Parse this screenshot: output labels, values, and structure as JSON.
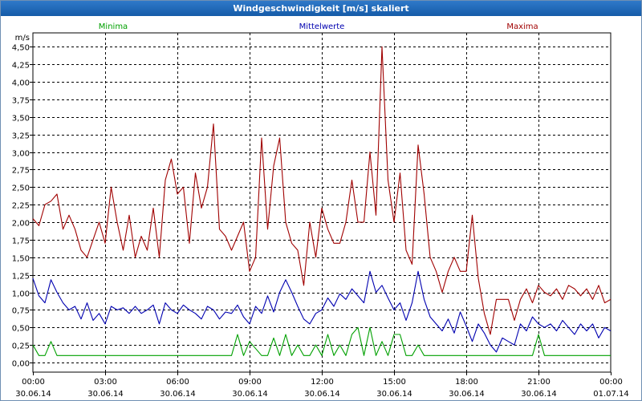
{
  "window": {
    "title": "Windgeschwindigkeit [m/s] skaliert"
  },
  "chart_data": {
    "type": "line",
    "title": "Windgeschwindigkeit [m/s] skaliert",
    "ylabel": "m/s",
    "xlabel": "",
    "ylim": [
      0,
      4.6
    ],
    "xlim_hours": [
      0,
      24
    ],
    "grid": true,
    "legend_placement": "top",
    "yticks": [
      0,
      0.25,
      0.5,
      0.75,
      1.0,
      1.25,
      1.5,
      1.75,
      2.0,
      2.25,
      2.5,
      2.75,
      3.0,
      3.25,
      3.5,
      3.75,
      4.0,
      4.25,
      4.5
    ],
    "ytick_labels": [
      "0,00",
      "0,25",
      "0,50",
      "0,75",
      "1,00",
      "1,25",
      "1,50",
      "1,75",
      "2,00",
      "2,25",
      "2,50",
      "2,75",
      "3,00",
      "3,25",
      "3,50",
      "3,75",
      "4,00",
      "4,25",
      "4,50"
    ],
    "xticks": [
      {
        "hour": 0,
        "time": "00:00",
        "date": "30.06.14"
      },
      {
        "hour": 3,
        "time": "03:00",
        "date": "30.06.14"
      },
      {
        "hour": 6,
        "time": "06:00",
        "date": "30.06.14"
      },
      {
        "hour": 9,
        "time": "09:00",
        "date": "30.06.14"
      },
      {
        "hour": 12,
        "time": "12:00",
        "date": "30.06.14"
      },
      {
        "hour": 15,
        "time": "15:00",
        "date": "30.06.14"
      },
      {
        "hour": 18,
        "time": "18:00",
        "date": "30.06.14"
      },
      {
        "hour": 21,
        "time": "21:00",
        "date": "30.06.14"
      },
      {
        "hour": 24,
        "time": "00:00",
        "date": "01.07.14"
      }
    ],
    "series": [
      {
        "name": "Minima",
        "color": "#00a000",
        "x": [
          0,
          0.25,
          0.5,
          0.75,
          1,
          8.25,
          8.5,
          8.75,
          9,
          9.5,
          9.75,
          10,
          10.25,
          10.5,
          10.75,
          11,
          11.25,
          11.5,
          11.75,
          12,
          12.25,
          12.5,
          12.75,
          13,
          13.25,
          13.5,
          13.75,
          14,
          14.25,
          14.5,
          14.75,
          15,
          15.25,
          15.5,
          15.75,
          16,
          16.25,
          16.5,
          20.75,
          21,
          21.25,
          24
        ],
        "values": [
          0.25,
          0.1,
          0.1,
          0.3,
          0.1,
          0.1,
          0.4,
          0.1,
          0.3,
          0.1,
          0.1,
          0.35,
          0.1,
          0.4,
          0.1,
          0.25,
          0.1,
          0.1,
          0.25,
          0.1,
          0.4,
          0.1,
          0.25,
          0.1,
          0.4,
          0.5,
          0.1,
          0.5,
          0.1,
          0.3,
          0.1,
          0.4,
          0.4,
          0.1,
          0.1,
          0.25,
          0.1,
          0.1,
          0.1,
          0.4,
          0.1,
          0.1
        ]
      },
      {
        "name": "Mittelwerte",
        "color": "#0000b0",
        "x": [
          0,
          0.25,
          0.5,
          0.75,
          1,
          1.25,
          1.5,
          1.75,
          2,
          2.25,
          2.5,
          2.75,
          3,
          3.25,
          3.5,
          3.75,
          4,
          4.25,
          4.5,
          4.75,
          5,
          5.25,
          5.5,
          5.75,
          6,
          6.25,
          6.5,
          6.75,
          7,
          7.25,
          7.5,
          7.75,
          8,
          8.25,
          8.5,
          8.75,
          9,
          9.25,
          9.5,
          9.75,
          10,
          10.25,
          10.5,
          10.75,
          11,
          11.25,
          11.5,
          11.75,
          12,
          12.25,
          12.5,
          12.75,
          13,
          13.25,
          13.5,
          13.75,
          14,
          14.25,
          14.5,
          14.75,
          15,
          15.25,
          15.5,
          15.75,
          16,
          16.25,
          16.5,
          16.75,
          17,
          17.25,
          17.5,
          17.75,
          18,
          18.25,
          18.5,
          18.75,
          19,
          19.25,
          19.5,
          19.75,
          20,
          20.25,
          20.5,
          20.75,
          21,
          21.25,
          21.5,
          21.75,
          22,
          22.25,
          22.5,
          22.75,
          23,
          23.25,
          23.5,
          23.75,
          24
        ],
        "values": [
          1.2,
          0.95,
          0.85,
          1.18,
          1.0,
          0.85,
          0.75,
          0.8,
          0.62,
          0.85,
          0.6,
          0.7,
          0.55,
          0.8,
          0.75,
          0.78,
          0.7,
          0.8,
          0.7,
          0.75,
          0.82,
          0.55,
          0.85,
          0.75,
          0.7,
          0.82,
          0.75,
          0.7,
          0.62,
          0.8,
          0.75,
          0.62,
          0.72,
          0.7,
          0.82,
          0.65,
          0.55,
          0.8,
          0.7,
          0.95,
          0.72,
          1.0,
          1.18,
          1.0,
          0.8,
          0.62,
          0.55,
          0.7,
          0.75,
          0.92,
          0.8,
          0.98,
          0.9,
          1.05,
          0.95,
          0.85,
          1.3,
          1.0,
          1.1,
          0.92,
          0.75,
          0.85,
          0.6,
          0.85,
          1.3,
          0.9,
          0.65,
          0.55,
          0.45,
          0.62,
          0.42,
          0.72,
          0.52,
          0.3,
          0.55,
          0.42,
          0.25,
          0.15,
          0.35,
          0.3,
          0.25,
          0.55,
          0.45,
          0.65,
          0.55,
          0.5,
          0.55,
          0.45,
          0.6,
          0.5,
          0.4,
          0.55,
          0.45,
          0.55,
          0.35,
          0.5,
          0.45
        ]
      },
      {
        "name": "Maxima",
        "color": "#a00000",
        "x": [
          0,
          0.25,
          0.5,
          0.75,
          1,
          1.25,
          1.5,
          1.75,
          2,
          2.25,
          2.5,
          2.75,
          3,
          3.25,
          3.5,
          3.75,
          4,
          4.25,
          4.5,
          4.75,
          5,
          5.25,
          5.5,
          5.75,
          6,
          6.25,
          6.5,
          6.75,
          7,
          7.25,
          7.5,
          7.75,
          8,
          8.25,
          8.5,
          8.75,
          9,
          9.25,
          9.5,
          9.75,
          10,
          10.25,
          10.5,
          10.75,
          11,
          11.25,
          11.5,
          11.75,
          12,
          12.25,
          12.5,
          12.75,
          13,
          13.25,
          13.5,
          13.75,
          14,
          14.25,
          14.5,
          14.75,
          15,
          15.25,
          15.5,
          15.75,
          16,
          16.25,
          16.5,
          16.75,
          17,
          17.25,
          17.5,
          17.75,
          18,
          18.25,
          18.5,
          18.75,
          19,
          19.25,
          19.5,
          19.75,
          20,
          20.25,
          20.5,
          20.75,
          21,
          21.25,
          21.5,
          21.75,
          22,
          22.25,
          22.5,
          22.75,
          23,
          23.25,
          23.5,
          23.75,
          24
        ],
        "values": [
          2.05,
          1.95,
          2.25,
          2.3,
          2.4,
          1.9,
          2.1,
          1.9,
          1.6,
          1.5,
          1.75,
          2.0,
          1.7,
          2.5,
          2.0,
          1.6,
          2.1,
          1.5,
          1.8,
          1.6,
          2.2,
          1.5,
          2.6,
          2.9,
          2.4,
          2.5,
          1.7,
          2.7,
          2.2,
          2.5,
          3.4,
          1.9,
          1.8,
          1.6,
          1.8,
          2.0,
          1.3,
          1.5,
          3.2,
          1.9,
          2.8,
          3.2,
          2.0,
          1.7,
          1.6,
          1.1,
          2.0,
          1.5,
          2.2,
          1.9,
          1.7,
          1.7,
          2.0,
          2.6,
          2.0,
          2.0,
          3.0,
          2.1,
          4.5,
          2.6,
          2.0,
          2.7,
          1.6,
          1.4,
          3.1,
          2.4,
          1.5,
          1.3,
          1.0,
          1.3,
          1.5,
          1.3,
          1.3,
          2.1,
          1.2,
          0.7,
          0.4,
          0.9,
          0.9,
          0.9,
          0.6,
          0.9,
          1.05,
          0.85,
          1.1,
          1.0,
          0.95,
          1.05,
          0.9,
          1.1,
          1.05,
          0.95,
          1.05,
          0.9,
          1.1,
          0.85,
          0.9
        ]
      }
    ]
  }
}
